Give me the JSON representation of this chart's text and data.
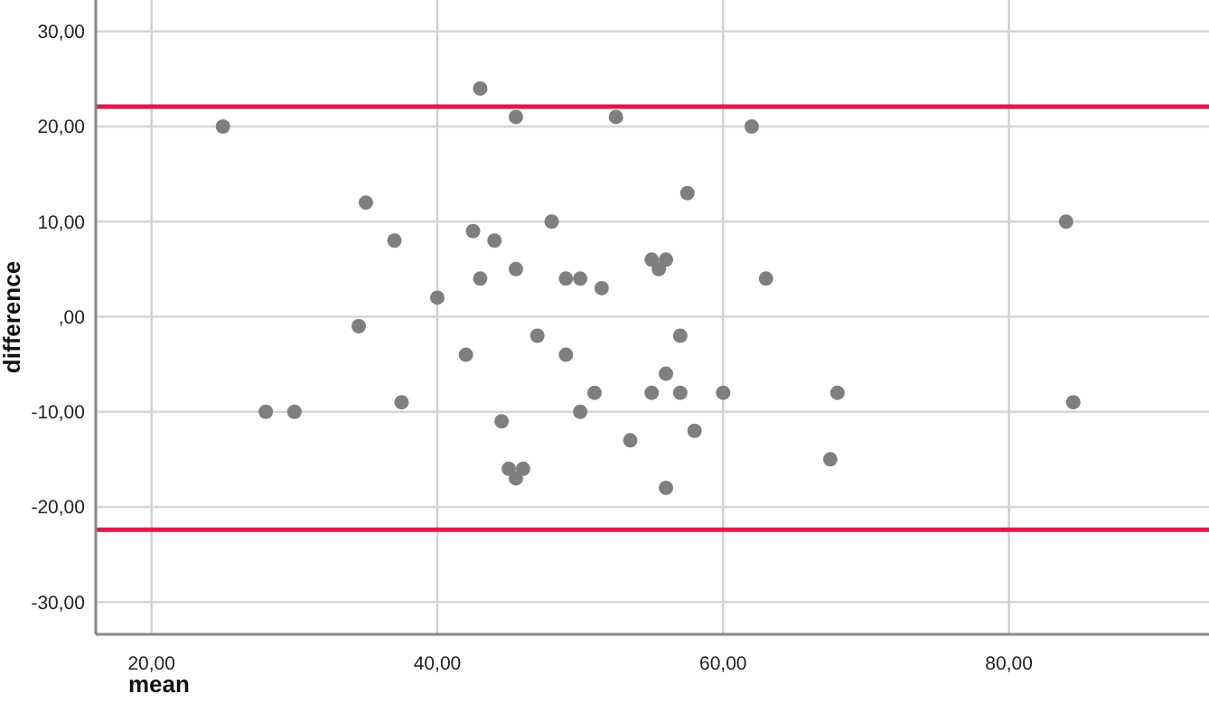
{
  "chart_data": {
    "type": "scatter",
    "xlabel": "mean",
    "ylabel": "difference",
    "x": [
      25,
      28,
      30,
      34.5,
      35,
      37,
      37.5,
      40,
      42,
      42.5,
      43,
      43,
      44,
      44.5,
      45,
      45.5,
      45.5,
      45.5,
      46,
      47,
      48,
      49,
      49,
      50,
      50,
      51,
      51.5,
      52.5,
      53.5,
      55,
      55,
      55.5,
      56,
      56,
      56,
      57,
      57,
      57.5,
      58,
      60,
      62,
      63,
      67.5,
      68,
      84,
      84.5
    ],
    "series": [
      {
        "color": "#7f7f7f",
        "values": [
          20,
          -10,
          -10,
          -1,
          12,
          8,
          -9,
          2,
          -4,
          9,
          4,
          24,
          8,
          -11,
          -16,
          5,
          -17,
          21,
          -16,
          -2,
          10,
          4,
          -4,
          4,
          -10,
          -8,
          3,
          21,
          -13,
          6,
          -8,
          5,
          6,
          -6,
          -18,
          -2,
          -8,
          13,
          -12,
          -8,
          20,
          4,
          -15,
          -8,
          10,
          -9
        ]
      }
    ],
    "xlim": [
      16.1,
      94
    ],
    "ylim": [
      -33.4,
      33.3
    ],
    "xticks": [
      {
        "value": 20,
        "label": "20,00"
      },
      {
        "value": 40,
        "label": "40,00"
      },
      {
        "value": 60,
        "label": "60,00"
      },
      {
        "value": 80,
        "label": "80,00"
      }
    ],
    "yticks": [
      {
        "value": -30,
        "label": "-30,00"
      },
      {
        "value": -20,
        "label": "-20,00"
      },
      {
        "value": -10,
        "label": "-10,00"
      },
      {
        "value": 0,
        "label": ",00"
      },
      {
        "value": 10,
        "label": "10,00"
      },
      {
        "value": 20,
        "label": "20,00"
      },
      {
        "value": 30,
        "label": "30,00"
      }
    ],
    "ref_lines": [
      {
        "axis": "y",
        "value": 22.1,
        "color": "#e0194d"
      },
      {
        "axis": "y",
        "value": -22.4,
        "color": "#e0194d"
      }
    ],
    "grid": true,
    "marker": "circle"
  }
}
